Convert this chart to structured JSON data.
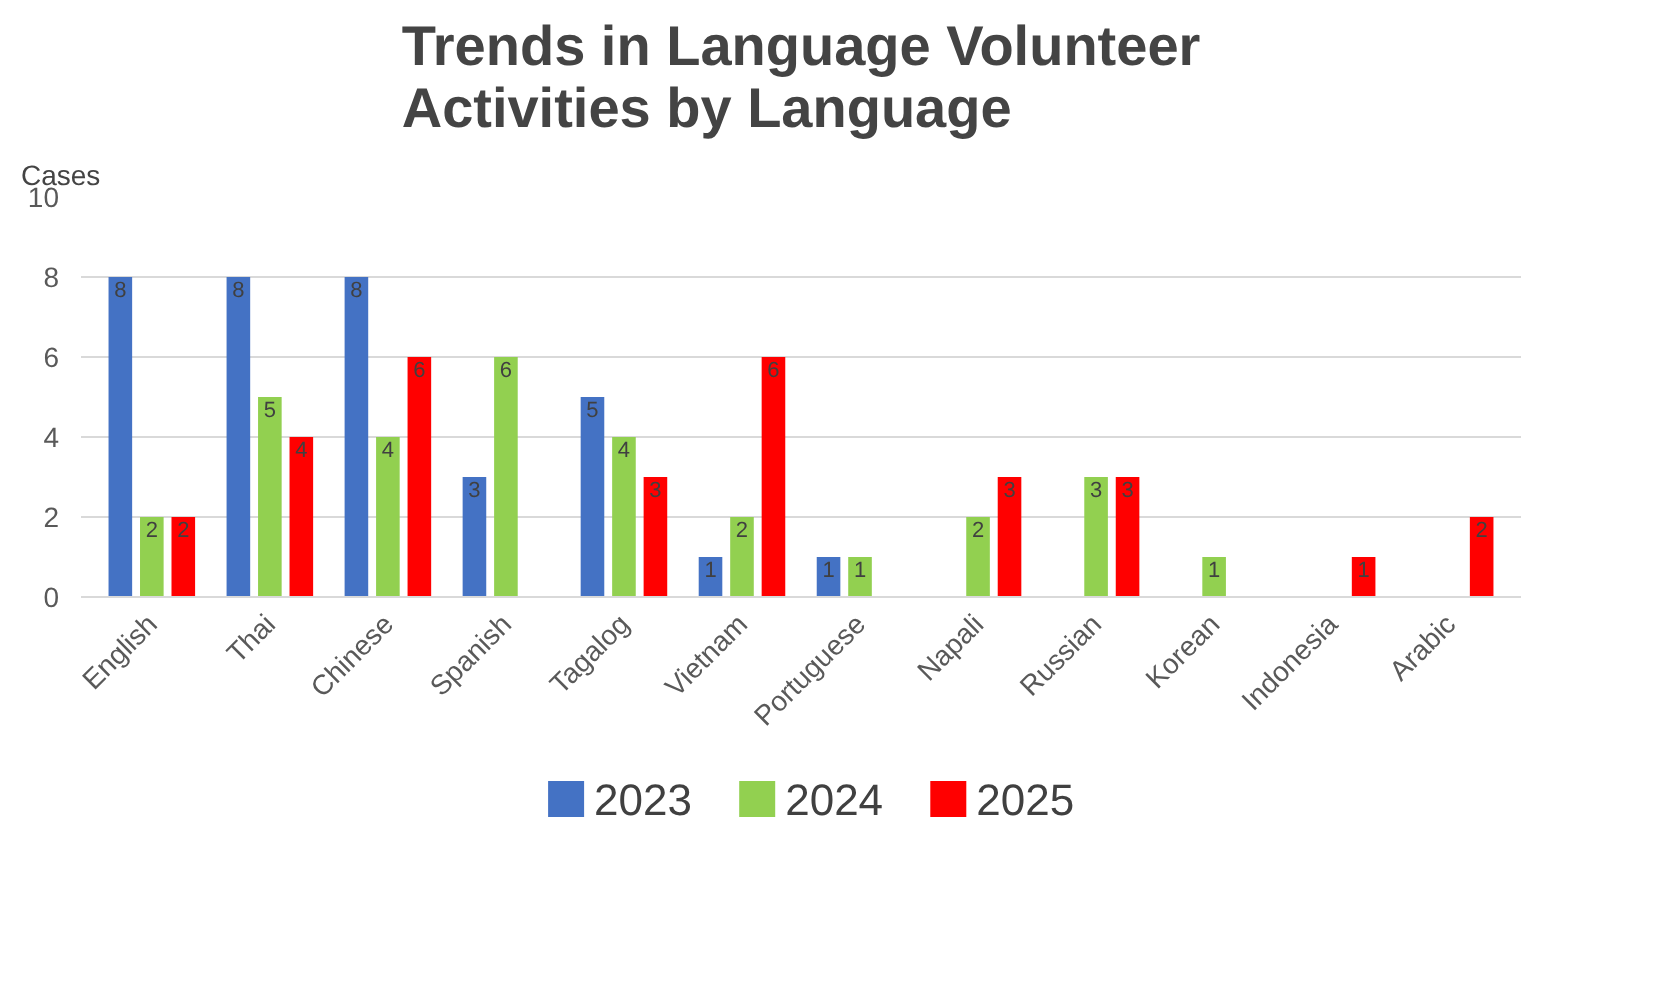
{
  "chart_data": {
    "type": "bar",
    "title": "Trends in Language Volunteer Activities by Language",
    "ylabel": "Cases",
    "categories": [
      "English",
      "Thai",
      "Chinese",
      "Spanish",
      "Tagalog",
      "Vietnam",
      "Portuguese",
      "Napali",
      "Russian",
      "Korean",
      "Indonesia",
      "Arabic"
    ],
    "series": [
      {
        "name": "2023",
        "color": "#4472c4",
        "values": [
          8,
          8,
          8,
          3,
          5,
          1,
          1,
          null,
          null,
          null,
          null,
          null
        ]
      },
      {
        "name": "2024",
        "color": "#92d050",
        "values": [
          2,
          5,
          4,
          6,
          4,
          2,
          1,
          2,
          3,
          1,
          null,
          null
        ]
      },
      {
        "name": "2025",
        "color": "#ff0000",
        "values": [
          2,
          4,
          6,
          null,
          3,
          6,
          null,
          3,
          3,
          null,
          1,
          2
        ]
      }
    ],
    "ylim": [
      0,
      10
    ],
    "yticks": [
      0,
      2,
      4,
      6,
      8,
      10
    ],
    "grid": "y",
    "legend": "bottom",
    "data_labels": true
  }
}
